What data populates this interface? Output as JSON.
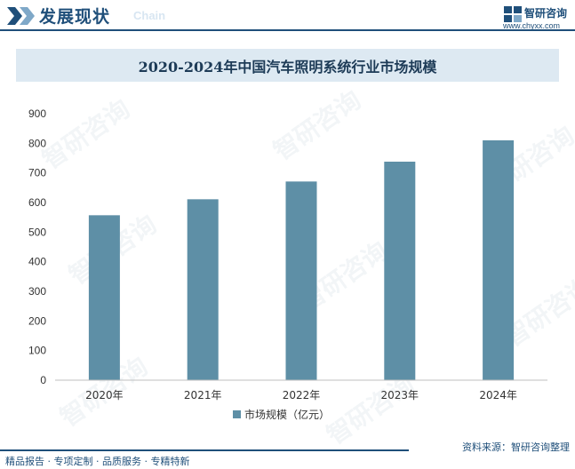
{
  "header": {
    "section_title": "发展现状",
    "section_sub": "Chain",
    "brand_name": "智研咨询",
    "brand_url": "www.chyxx.com"
  },
  "chart_data": {
    "type": "bar",
    "title": "2020-2024年中国汽车照明系统行业市场规模",
    "categories": [
      "2020年",
      "2021年",
      "2022年",
      "2023年",
      "2024年"
    ],
    "series": [
      {
        "name": "市场规模（亿元）",
        "values": [
          557,
          611,
          671,
          738,
          810
        ]
      }
    ],
    "ylim": [
      0,
      900
    ],
    "yticks": [
      0,
      100,
      200,
      300,
      400,
      500,
      600,
      700,
      800,
      900
    ],
    "grid": false,
    "legend_position": "bottom",
    "bar_color": "#5e8fa6"
  },
  "footer": {
    "left_text": "精品报告 · 专项定制 · 品质服务 · 专精特新",
    "source_text": "资料来源：智研咨询整理"
  },
  "watermark": {
    "text": "智研咨询"
  }
}
